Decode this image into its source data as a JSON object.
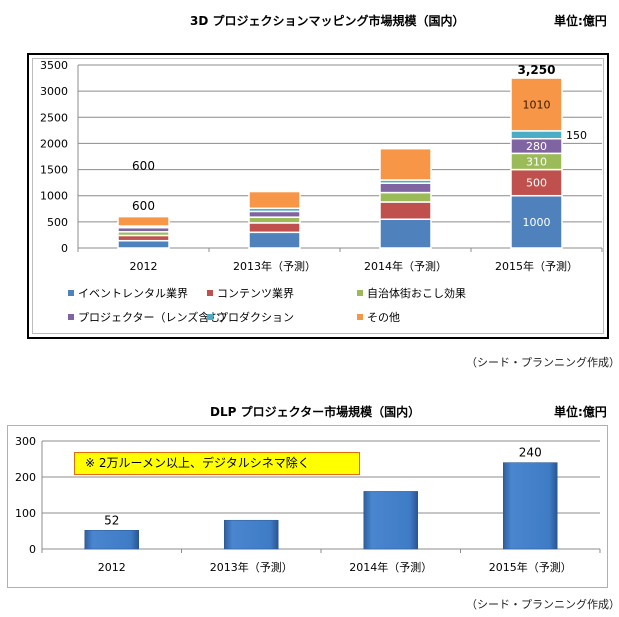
{
  "chart_data": [
    {
      "type": "bar",
      "stacked": true,
      "title": "3D プロジェクションマッピング市場規模（国内）",
      "unit_label": "単位:億円",
      "categories": [
        "2012",
        "2013年（予測）",
        "2014年（予測）",
        "2015年（予測）"
      ],
      "ylim": [
        0,
        3500
      ],
      "yticks": [
        "0",
        "500",
        "1000",
        "1500",
        "2000",
        "2500",
        "3000",
        "3500"
      ],
      "ytick_values": [
        0,
        500,
        1000,
        1500,
        2000,
        2500,
        3000,
        3500
      ],
      "grid": true,
      "legend_position": "bottom",
      "series": [
        {
          "name": "イベントレンタル業界",
          "color": "#4f81bd",
          "values": [
            140,
            300,
            550,
            1000
          ]
        },
        {
          "name": "コンテンツ業界",
          "color": "#c0504d",
          "values": [
            100,
            180,
            330,
            500
          ]
        },
        {
          "name": "自治体街おこし効果",
          "color": "#9bbb59",
          "values": [
            70,
            110,
            180,
            310
          ]
        },
        {
          "name": "プロジェクター（レンズ含む）",
          "color": "#8064a2",
          "values": [
            80,
            110,
            180,
            280
          ]
        },
        {
          "name": "プロダクション",
          "color": "#4bacc6",
          "values": [
            30,
            60,
            60,
            150
          ]
        },
        {
          "name": "その他",
          "color": "#f79646",
          "values": [
            180,
            320,
            600,
            1010
          ]
        }
      ],
      "data_labels": {
        "total_2012_upper": "600",
        "total_2012": "600",
        "total_2015": "3,250",
        "seg_2015": [
          "1000",
          "500",
          "310",
          "280",
          "150",
          "1010"
        ]
      }
    },
    {
      "type": "bar",
      "title": "DLP プロジェクター市場規模（国内）",
      "unit_label": "単位:億円",
      "categories": [
        "2012",
        "2013年（予測）",
        "2014年（予測）",
        "2015年（予測）"
      ],
      "values": [
        52,
        80,
        160,
        240
      ],
      "value_labels": [
        "52",
        "",
        "",
        "240"
      ],
      "ylim": [
        0,
        300
      ],
      "yticks": [
        "0",
        "100",
        "200",
        "300"
      ],
      "ytick_values": [
        0,
        100,
        200,
        300
      ],
      "grid": true,
      "color": "#3a72b8",
      "annotation": "※  2万ルーメン以上、デジタルシネマ除く"
    }
  ],
  "credit": "（シード・プランニング作成）"
}
